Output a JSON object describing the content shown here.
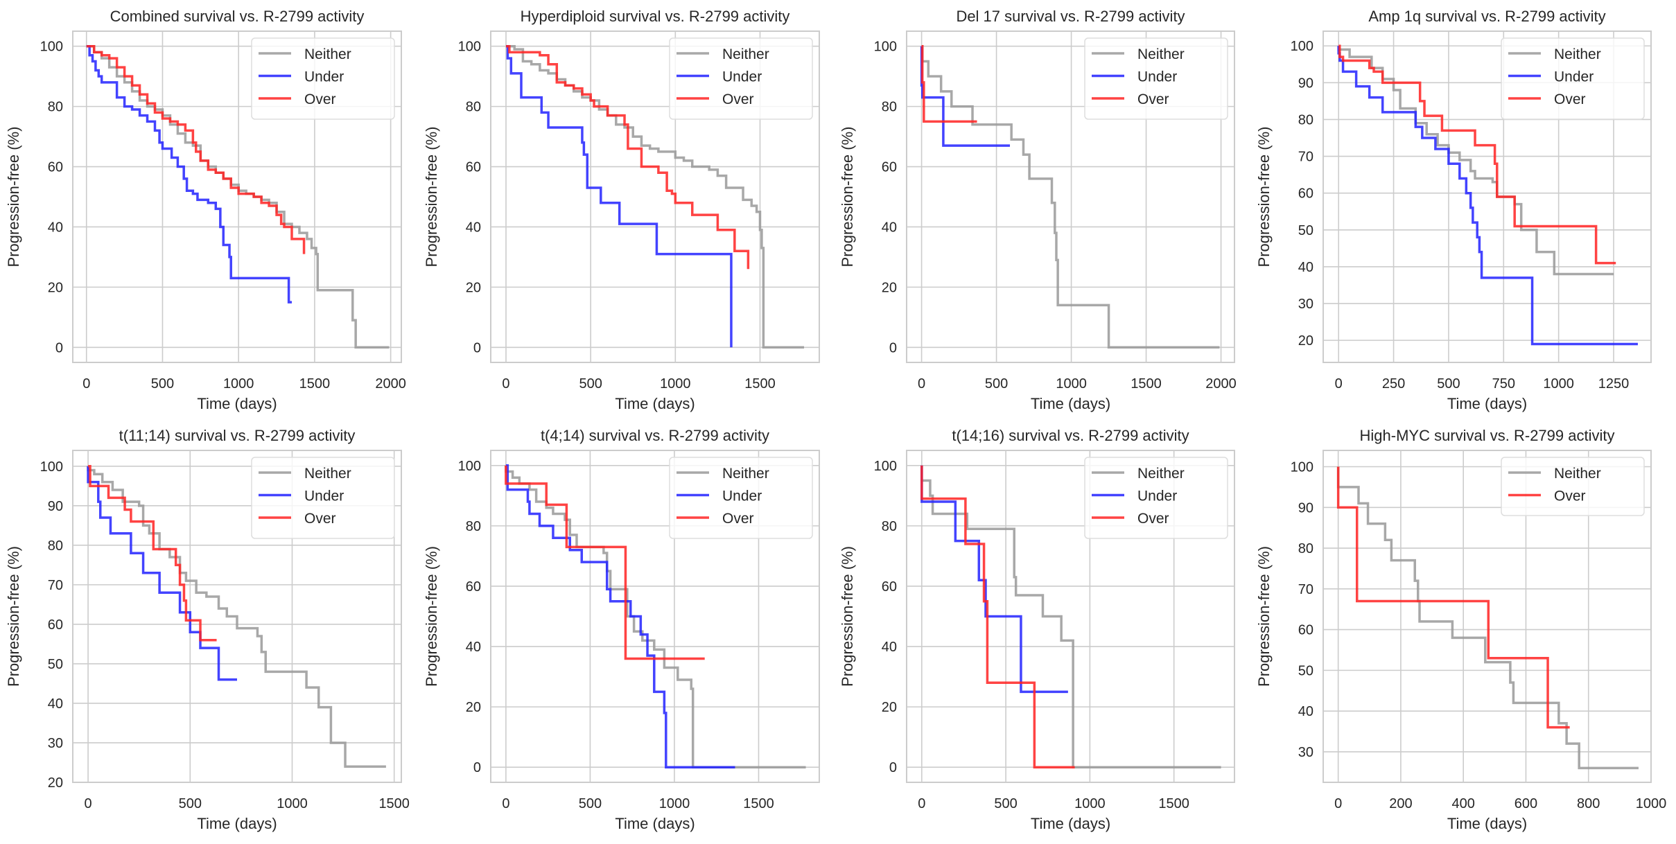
{
  "figure": {
    "ylabel": "Progression-free (%)",
    "xlabel": "Time (days)",
    "colors": {
      "Neither": "#999999",
      "Under": "#2222ff",
      "Over": "#ff2222"
    }
  },
  "chart_data": [
    {
      "type": "line",
      "step": "post",
      "title": "Combined survival vs. R-2799 activity",
      "xlabel": "Time (days)",
      "ylabel": "Progression-free (%)",
      "xlim": [
        -90,
        2070
      ],
      "ylim": [
        -5,
        105
      ],
      "xticks": [
        0,
        500,
        1000,
        1500,
        2000
      ],
      "yticks": [
        0,
        20,
        40,
        60,
        80,
        100
      ],
      "grid": true,
      "legend": "top-right",
      "series": [
        {
          "name": "Neither",
          "x": [
            0,
            50,
            100,
            150,
            200,
            250,
            300,
            350,
            400,
            450,
            500,
            550,
            600,
            650,
            700,
            750,
            800,
            850,
            900,
            950,
            1000,
            1050,
            1100,
            1150,
            1200,
            1250,
            1300,
            1350,
            1400,
            1450,
            1480,
            1510,
            1520,
            1750,
            1770,
            1990
          ],
          "y": [
            100,
            98,
            96,
            93,
            90,
            88,
            85,
            82,
            80,
            79,
            77,
            74,
            71,
            68,
            67,
            62,
            60,
            58,
            56,
            54,
            52,
            51,
            50,
            49,
            48,
            45,
            41,
            40,
            38,
            36,
            33,
            31,
            19,
            9,
            0,
            0
          ]
        },
        {
          "name": "Under",
          "x": [
            0,
            20,
            40,
            60,
            80,
            100,
            150,
            200,
            250,
            300,
            350,
            400,
            450,
            480,
            500,
            530,
            560,
            600,
            640,
            660,
            700,
            730,
            800,
            850,
            880,
            900,
            940,
            950,
            1330,
            1350
          ],
          "y": [
            100,
            97,
            95,
            92,
            90,
            88,
            88,
            83,
            80,
            79,
            77,
            75,
            72,
            68,
            66,
            66,
            63,
            60,
            56,
            52,
            51,
            49,
            48,
            46,
            40,
            34,
            30,
            23,
            15,
            15
          ]
        },
        {
          "name": "Over",
          "x": [
            0,
            50,
            100,
            150,
            200,
            250,
            300,
            350,
            400,
            450,
            500,
            550,
            600,
            650,
            700,
            720,
            750,
            800,
            850,
            900,
            950,
            1000,
            1050,
            1100,
            1150,
            1200,
            1250,
            1280,
            1300,
            1350,
            1400,
            1430
          ],
          "y": [
            100,
            98,
            97,
            96,
            93,
            90,
            87,
            84,
            81,
            78,
            76,
            75,
            74,
            72,
            68,
            65,
            62,
            59,
            58,
            56,
            53,
            51,
            51,
            50,
            48,
            47,
            44,
            41,
            40,
            36,
            36,
            31
          ]
        }
      ]
    },
    {
      "type": "line",
      "step": "post",
      "title": "Hyperdiploid survival vs. R-2799 activity",
      "xlabel": "Time (days)",
      "ylabel": "Progression-free (%)",
      "xlim": [
        -90,
        1850
      ],
      "ylim": [
        -5,
        105
      ],
      "xticks": [
        0,
        500,
        1000,
        1500
      ],
      "yticks": [
        0,
        20,
        40,
        60,
        80,
        100
      ],
      "grid": true,
      "legend": "top-right",
      "series": [
        {
          "name": "Neither",
          "x": [
            0,
            50,
            100,
            150,
            200,
            250,
            300,
            350,
            400,
            450,
            500,
            550,
            600,
            650,
            700,
            750,
            800,
            850,
            900,
            950,
            1000,
            1050,
            1100,
            1150,
            1200,
            1250,
            1300,
            1350,
            1400,
            1450,
            1480,
            1500,
            1510,
            1520,
            1760
          ],
          "y": [
            100,
            99,
            95,
            94,
            92,
            91,
            89,
            87,
            85,
            83,
            82,
            79,
            77,
            74,
            73,
            70,
            67,
            66,
            65,
            65,
            63,
            62,
            60,
            60,
            59,
            57,
            53,
            53,
            49,
            47,
            45,
            39,
            33,
            0,
            0
          ]
        },
        {
          "name": "Under",
          "x": [
            0,
            10,
            30,
            70,
            90,
            210,
            250,
            370,
            450,
            460,
            480,
            560,
            670,
            840,
            890,
            1330
          ],
          "y": [
            100,
            96,
            91,
            91,
            83,
            78,
            73,
            73,
            68,
            64,
            53,
            48,
            41,
            41,
            31,
            0
          ]
        },
        {
          "name": "Over",
          "x": [
            0,
            20,
            150,
            200,
            250,
            300,
            350,
            400,
            450,
            500,
            520,
            600,
            700,
            720,
            800,
            900,
            950,
            980,
            1000,
            1100,
            1250,
            1350,
            1430
          ],
          "y": [
            100,
            98,
            98,
            97,
            94,
            88,
            87,
            86,
            84,
            82,
            80,
            77,
            74,
            66,
            60,
            58,
            52,
            51,
            48,
            44,
            39,
            32,
            26
          ]
        }
      ]
    },
    {
      "type": "line",
      "step": "post",
      "title": "Del 17 survival vs. R-2799 activity",
      "xlabel": "Time (days)",
      "ylabel": "Progression-free (%)",
      "xlim": [
        -100,
        2090
      ],
      "ylim": [
        -5,
        105
      ],
      "xticks": [
        0,
        500,
        1000,
        1500,
        2000
      ],
      "yticks": [
        0,
        20,
        40,
        60,
        80,
        100
      ],
      "grid": true,
      "legend": "top-right",
      "series": [
        {
          "name": "Neither",
          "x": [
            0,
            5,
            45,
            130,
            200,
            340,
            600,
            680,
            720,
            870,
            890,
            900,
            910,
            1250,
            1990
          ],
          "y": [
            100,
            95,
            90,
            85,
            80,
            74,
            69,
            64,
            56,
            48,
            38,
            29,
            14,
            0,
            0
          ]
        },
        {
          "name": "Under",
          "x": [
            0,
            5,
            145,
            590
          ],
          "y": [
            87,
            83,
            67,
            67
          ]
        },
        {
          "name": "Over",
          "x": [
            0,
            5,
            15,
            370
          ],
          "y": [
            100,
            88,
            75,
            75
          ]
        }
      ]
    },
    {
      "type": "line",
      "step": "post",
      "title": "Amp 1q survival vs. R-2799 activity",
      "xlabel": "Time (days)",
      "ylabel": "Progression-free (%)",
      "xlim": [
        -70,
        1420
      ],
      "ylim": [
        14,
        104
      ],
      "xticks": [
        0,
        250,
        500,
        750,
        1000,
        1250
      ],
      "yticks": [
        20,
        30,
        40,
        50,
        60,
        70,
        80,
        90,
        100
      ],
      "grid": true,
      "legend": "top-right",
      "series": [
        {
          "name": "Neither",
          "x": [
            0,
            50,
            150,
            200,
            250,
            280,
            350,
            400,
            450,
            500,
            550,
            600,
            620,
            700,
            720,
            800,
            830,
            900,
            980,
            1250
          ],
          "y": [
            99,
            97,
            94,
            91,
            88,
            83,
            79,
            76,
            73,
            71,
            69,
            66,
            64,
            63,
            59,
            57,
            50,
            44,
            38,
            38
          ]
        },
        {
          "name": "Under",
          "x": [
            0,
            5,
            20,
            80,
            140,
            200,
            340,
            350,
            380,
            440,
            500,
            550,
            580,
            600,
            610,
            630,
            640,
            650,
            880,
            1360
          ],
          "y": [
            98,
            96,
            93,
            89,
            86,
            82,
            82,
            78,
            75,
            72,
            68,
            64,
            60,
            56,
            52,
            48,
            44,
            37,
            19,
            19
          ]
        },
        {
          "name": "Over",
          "x": [
            0,
            5,
            20,
            140,
            160,
            200,
            370,
            390,
            470,
            620,
            710,
            720,
            800,
            1170,
            1260
          ],
          "y": [
            100,
            97,
            96,
            94,
            93,
            90,
            85,
            81,
            77,
            73,
            68,
            59,
            51,
            41,
            41
          ]
        }
      ]
    },
    {
      "type": "line",
      "step": "post",
      "title": "t(11;14) survival vs. R-2799 activity",
      "xlabel": "Time (days)",
      "ylabel": "Progression-free (%)",
      "xlim": [
        -75,
        1535
      ],
      "ylim": [
        20,
        104
      ],
      "xticks": [
        0,
        500,
        1000,
        1500
      ],
      "yticks": [
        20,
        30,
        40,
        50,
        60,
        70,
        80,
        90,
        100
      ],
      "grid": true,
      "legend": "top-right",
      "series": [
        {
          "name": "Neither",
          "x": [
            0,
            30,
            70,
            120,
            170,
            250,
            270,
            300,
            350,
            400,
            450,
            480,
            530,
            580,
            640,
            680,
            730,
            830,
            850,
            870,
            1070,
            1130,
            1190,
            1260,
            1460
          ],
          "y": [
            99,
            98,
            96,
            94,
            91,
            90,
            85,
            83,
            79,
            77,
            73,
            71,
            68,
            67,
            64,
            62,
            59,
            57,
            53,
            48,
            44,
            39,
            30,
            24,
            24
          ]
        },
        {
          "name": "Under",
          "x": [
            0,
            50,
            60,
            110,
            210,
            270,
            350,
            450,
            500,
            550,
            640,
            730
          ],
          "y": [
            96,
            91,
            87,
            83,
            78,
            73,
            68,
            63,
            58,
            54,
            46,
            46
          ]
        },
        {
          "name": "Over",
          "x": [
            0,
            10,
            100,
            180,
            210,
            320,
            430,
            450,
            470,
            480,
            550,
            630
          ],
          "y": [
            100,
            95,
            92,
            89,
            86,
            79,
            75,
            70,
            66,
            61,
            56,
            56
          ]
        }
      ]
    },
    {
      "type": "line",
      "step": "post",
      "title": "t(4;14) survival vs. R-2799 activity",
      "xlabel": "Time (days)",
      "ylabel": "Progression-free (%)",
      "xlim": [
        -90,
        1860
      ],
      "ylim": [
        -5,
        105
      ],
      "xticks": [
        0,
        500,
        1000,
        1500
      ],
      "yticks": [
        0,
        20,
        40,
        60,
        80,
        100
      ],
      "grid": true,
      "legend": "top-right",
      "series": [
        {
          "name": "Neither",
          "x": [
            0,
            40,
            80,
            140,
            180,
            240,
            280,
            350,
            380,
            420,
            580,
            600,
            620,
            720,
            760,
            810,
            880,
            940,
            1020,
            1100,
            1110,
            1780
          ],
          "y": [
            98,
            96,
            94,
            92,
            88,
            86,
            84,
            82,
            77,
            73,
            71,
            65,
            59,
            50,
            45,
            42,
            39,
            33,
            29,
            26,
            0,
            0
          ]
        },
        {
          "name": "Under",
          "x": [
            0,
            10,
            130,
            140,
            200,
            280,
            380,
            450,
            600,
            620,
            740,
            800,
            840,
            880,
            940,
            950,
            1360
          ],
          "y": [
            100,
            92,
            88,
            84,
            80,
            76,
            72,
            68,
            59,
            55,
            50,
            44,
            37,
            25,
            18,
            0,
            0
          ]
        },
        {
          "name": "Over",
          "x": [
            0,
            240,
            360,
            710,
            1180
          ],
          "y": [
            94,
            87,
            73,
            36,
            36
          ]
        }
      ]
    },
    {
      "type": "line",
      "step": "post",
      "title": "t(14;16) survival vs. R-2799 activity",
      "xlabel": "Time (days)",
      "ylabel": "Progression-free (%)",
      "xlim": [
        -90,
        1860
      ],
      "ylim": [
        -5,
        105
      ],
      "xticks": [
        0,
        500,
        1000,
        1500
      ],
      "yticks": [
        0,
        20,
        40,
        60,
        80,
        100
      ],
      "grid": true,
      "legend": "top-right",
      "series": [
        {
          "name": "Neither",
          "x": [
            0,
            50,
            65,
            270,
            550,
            560,
            580,
            720,
            830,
            900,
            1780
          ],
          "y": [
            95,
            90,
            84,
            79,
            63,
            57,
            57,
            50,
            42,
            0,
            0
          ]
        },
        {
          "name": "Under",
          "x": [
            0,
            200,
            340,
            380,
            590,
            870
          ],
          "y": [
            88,
            75,
            62,
            50,
            25,
            25
          ]
        },
        {
          "name": "Over",
          "x": [
            0,
            260,
            370,
            380,
            390,
            670,
            910
          ],
          "y": [
            89,
            74,
            55,
            55,
            28,
            0,
            0
          ]
        }
      ]
    },
    {
      "type": "line",
      "step": "post",
      "title": "High-MYC survival vs. R-2799 activity",
      "xlabel": "Time (days)",
      "ylabel": "Progression-free (%)",
      "xlim": [
        -48,
        1000
      ],
      "ylim": [
        22.5,
        104
      ],
      "xticks": [
        0,
        200,
        400,
        600,
        800,
        1000
      ],
      "yticks": [
        30,
        40,
        50,
        60,
        70,
        80,
        90,
        100
      ],
      "grid": true,
      "legend": "top-right",
      "series": [
        {
          "name": "Neither",
          "x": [
            0,
            65,
            95,
            150,
            170,
            245,
            255,
            260,
            365,
            470,
            550,
            560,
            705,
            730,
            770,
            960
          ],
          "y": [
            95,
            91,
            86,
            82,
            77,
            72,
            67,
            62,
            58,
            52,
            47,
            42,
            37,
            32,
            26,
            26
          ]
        },
        {
          "name": "Over",
          "x": [
            0,
            60,
            480,
            670,
            740
          ],
          "y": [
            90,
            67,
            53,
            36,
            36
          ]
        }
      ]
    }
  ]
}
